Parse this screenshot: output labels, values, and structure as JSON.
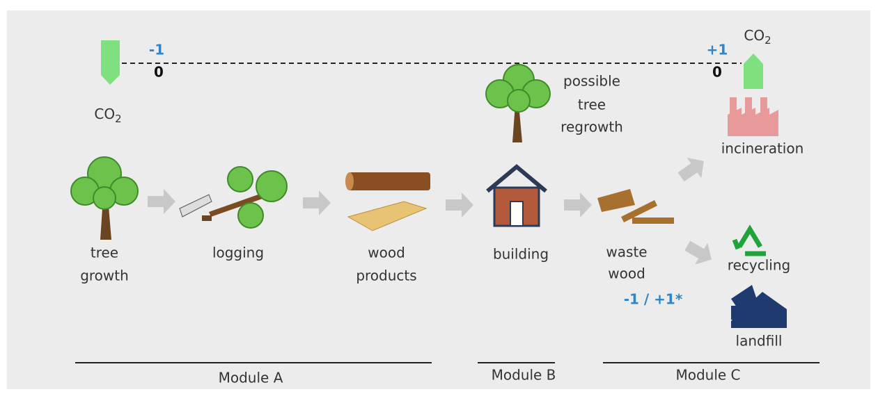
{
  "emissions": {
    "start": {
      "change": "-1",
      "baseline": "0",
      "gas": {
        "base": "CO",
        "sub": "2"
      }
    },
    "end": {
      "change": "+1",
      "baseline": "0",
      "gas": {
        "base": "CO",
        "sub": "2"
      }
    }
  },
  "regrowth": {
    "lines": [
      "possible",
      "tree",
      "regrowth"
    ]
  },
  "stages": {
    "tree_growth": [
      "tree",
      "growth"
    ],
    "logging": [
      "logging"
    ],
    "wood_products": [
      "wood",
      "products"
    ],
    "building": [
      "building"
    ],
    "waste_wood": [
      "waste",
      "wood"
    ],
    "waste_balance": "-1 / +1*",
    "incineration": "incineration",
    "recycling": "recycling",
    "landfill": "landfill"
  },
  "modules": [
    "Module A",
    "Module B",
    "Module C"
  ]
}
